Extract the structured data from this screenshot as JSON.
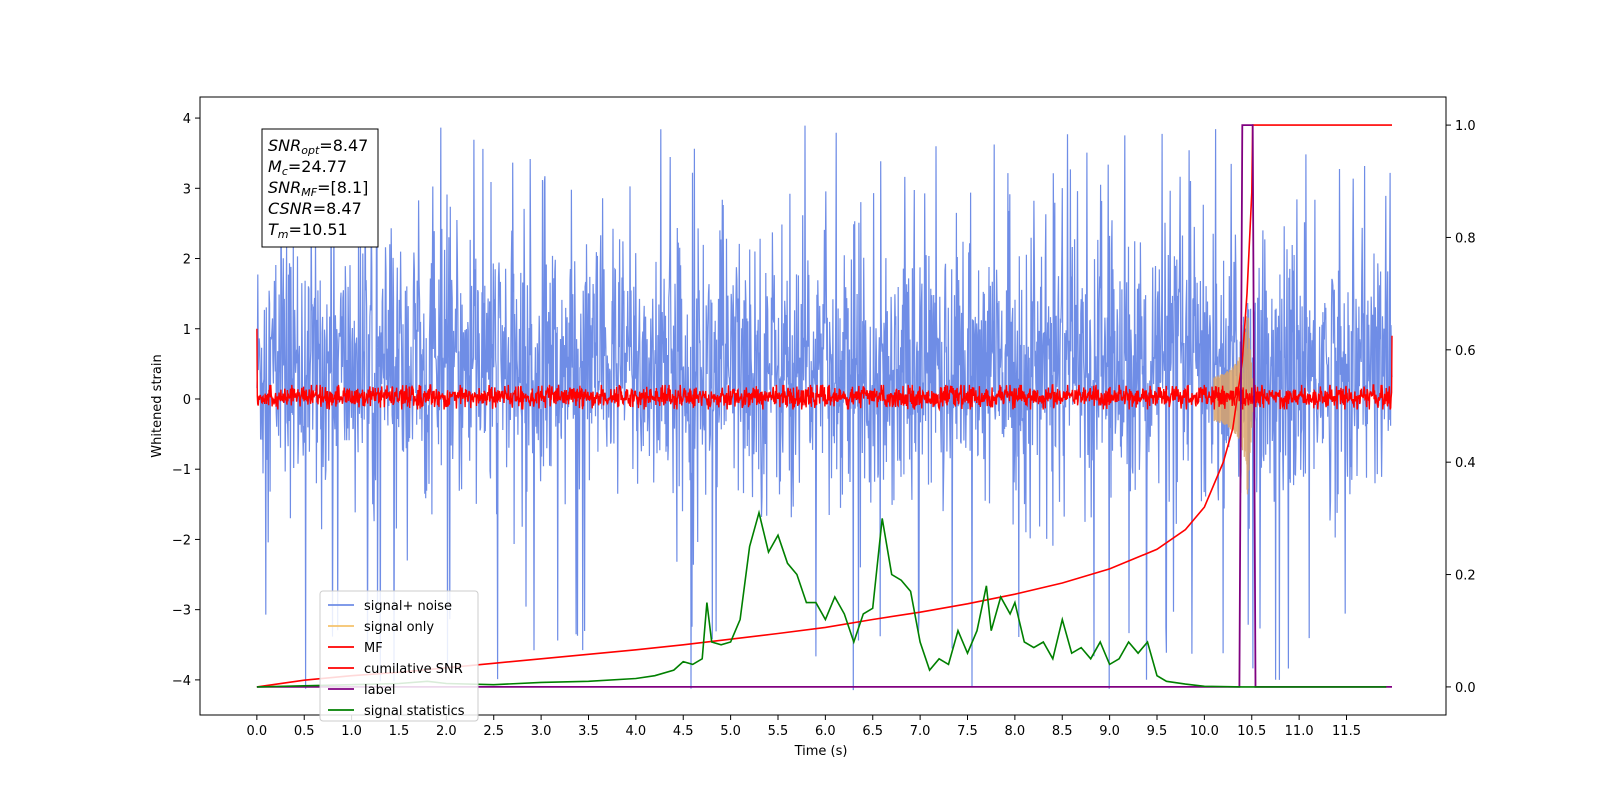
{
  "chart_data": {
    "type": "line",
    "xlabel": "Time (s)",
    "ylabel": "Whitened strain",
    "xlim": [
      -0.6,
      12.55
    ],
    "ylim": [
      -4.5,
      4.3
    ],
    "y2lim": [
      -0.05,
      1.05
    ],
    "x_ticks": [
      "0.0",
      "0.5",
      "1.0",
      "1.5",
      "2.0",
      "2.5",
      "3.0",
      "3.5",
      "4.0",
      "4.5",
      "5.0",
      "5.5",
      "6.0",
      "6.5",
      "7.0",
      "7.5",
      "8.0",
      "8.5",
      "9.0",
      "9.5",
      "10.0",
      "10.5",
      "11.0",
      "11.5"
    ],
    "y_ticks": [
      "4",
      "3",
      "2",
      "1",
      "0",
      "−1",
      "−2",
      "−3",
      "−4"
    ],
    "y2_ticks": [
      "1.0",
      "0.8",
      "0.6",
      "0.4",
      "0.2",
      "0.0"
    ],
    "annotation": {
      "lines": [
        {
          "base": "SNR",
          "sub": "opt",
          "value": "=8.47"
        },
        {
          "base": "M",
          "sub": "c",
          "value": "=24.77"
        },
        {
          "base": "SNR",
          "sub": "MF",
          "value": "=[8.1]"
        },
        {
          "base": "CSNR",
          "sub": "",
          "value": "=8.47"
        },
        {
          "base": "T",
          "sub": "m",
          "value": "=10.51"
        }
      ]
    },
    "legend": {
      "placement": "lower-left",
      "entries": [
        {
          "label": "signal+ noise",
          "color": "#6f8de6"
        },
        {
          "label": "signal only",
          "color": "#f5c26b"
        },
        {
          "label": "MF",
          "color": "#ff0000"
        },
        {
          "label": "cumilative SNR",
          "color": "#ff0000"
        },
        {
          "label": "label",
          "color": "#800080"
        },
        {
          "label": "signal statistics",
          "color": "#008000"
        }
      ]
    },
    "series": [
      {
        "name": "signal+ noise",
        "axis": "left",
        "color": "#6f8de6",
        "x_range": [
          0.0,
          11.98
        ],
        "envelope_typical": [
          -2.0,
          2.8
        ],
        "spike_range": [
          -4.15,
          3.9
        ]
      },
      {
        "name": "signal only",
        "axis": "left",
        "color": "#d9a36a",
        "chirp_start": 10.1,
        "chirp_peak": 10.45,
        "peak_amplitude": 1.5
      },
      {
        "name": "MF",
        "axis": "left",
        "color": "#ff0000",
        "x_range": [
          0.0,
          11.98
        ],
        "start_value": 1.0,
        "end_value": 0.9,
        "band": [
          -0.15,
          0.2
        ]
      },
      {
        "name": "cumilative SNR",
        "axis": "right",
        "x": [
          0.0,
          0.5,
          1.0,
          1.5,
          2.0,
          2.5,
          3.0,
          3.5,
          4.0,
          4.5,
          5.0,
          5.5,
          6.0,
          6.5,
          7.0,
          7.5,
          8.0,
          8.5,
          9.0,
          9.5,
          9.8,
          10.0,
          10.2,
          10.3,
          10.4,
          10.45,
          10.5,
          10.51,
          11.0,
          11.5,
          11.98
        ],
        "values": [
          0.0,
          0.012,
          0.02,
          0.026,
          0.034,
          0.042,
          0.05,
          0.058,
          0.066,
          0.075,
          0.085,
          0.095,
          0.106,
          0.12,
          0.133,
          0.148,
          0.165,
          0.185,
          0.21,
          0.245,
          0.28,
          0.32,
          0.4,
          0.46,
          0.58,
          0.7,
          0.88,
          1.0,
          1.0,
          1.0,
          1.0
        ]
      },
      {
        "name": "label",
        "axis": "right",
        "x": [
          0.0,
          10.37,
          10.4,
          10.51,
          10.54,
          11.98
        ],
        "values": [
          0.0,
          0.0,
          1.0,
          1.0,
          0.0,
          0.0
        ]
      },
      {
        "name": "signal statistics",
        "axis": "right",
        "x": [
          0.0,
          0.5,
          1.0,
          1.5,
          1.8,
          2.0,
          2.5,
          3.0,
          3.5,
          4.0,
          4.2,
          4.4,
          4.5,
          4.6,
          4.7,
          4.75,
          4.8,
          4.9,
          5.0,
          5.1,
          5.2,
          5.3,
          5.4,
          5.5,
          5.6,
          5.7,
          5.8,
          5.9,
          6.0,
          6.1,
          6.2,
          6.3,
          6.4,
          6.5,
          6.6,
          6.7,
          6.8,
          6.9,
          7.0,
          7.1,
          7.2,
          7.3,
          7.4,
          7.5,
          7.6,
          7.7,
          7.75,
          7.85,
          7.95,
          8.0,
          8.1,
          8.2,
          8.3,
          8.4,
          8.5,
          8.6,
          8.7,
          8.8,
          8.9,
          9.0,
          9.1,
          9.2,
          9.3,
          9.4,
          9.5,
          9.6,
          9.8,
          10.0,
          10.4,
          11.0,
          11.92
        ],
        "values": [
          0.0,
          0.002,
          0.004,
          0.006,
          0.01,
          0.006,
          0.004,
          0.008,
          0.01,
          0.015,
          0.02,
          0.03,
          0.045,
          0.04,
          0.05,
          0.15,
          0.08,
          0.075,
          0.08,
          0.12,
          0.25,
          0.31,
          0.24,
          0.27,
          0.22,
          0.2,
          0.15,
          0.15,
          0.12,
          0.16,
          0.13,
          0.08,
          0.13,
          0.14,
          0.3,
          0.2,
          0.19,
          0.17,
          0.08,
          0.03,
          0.05,
          0.04,
          0.1,
          0.06,
          0.1,
          0.18,
          0.1,
          0.16,
          0.13,
          0.15,
          0.08,
          0.07,
          0.08,
          0.05,
          0.12,
          0.06,
          0.07,
          0.05,
          0.08,
          0.04,
          0.05,
          0.08,
          0.06,
          0.08,
          0.02,
          0.01,
          0.005,
          0.001,
          0.0,
          0.0,
          0.0
        ]
      }
    ]
  }
}
